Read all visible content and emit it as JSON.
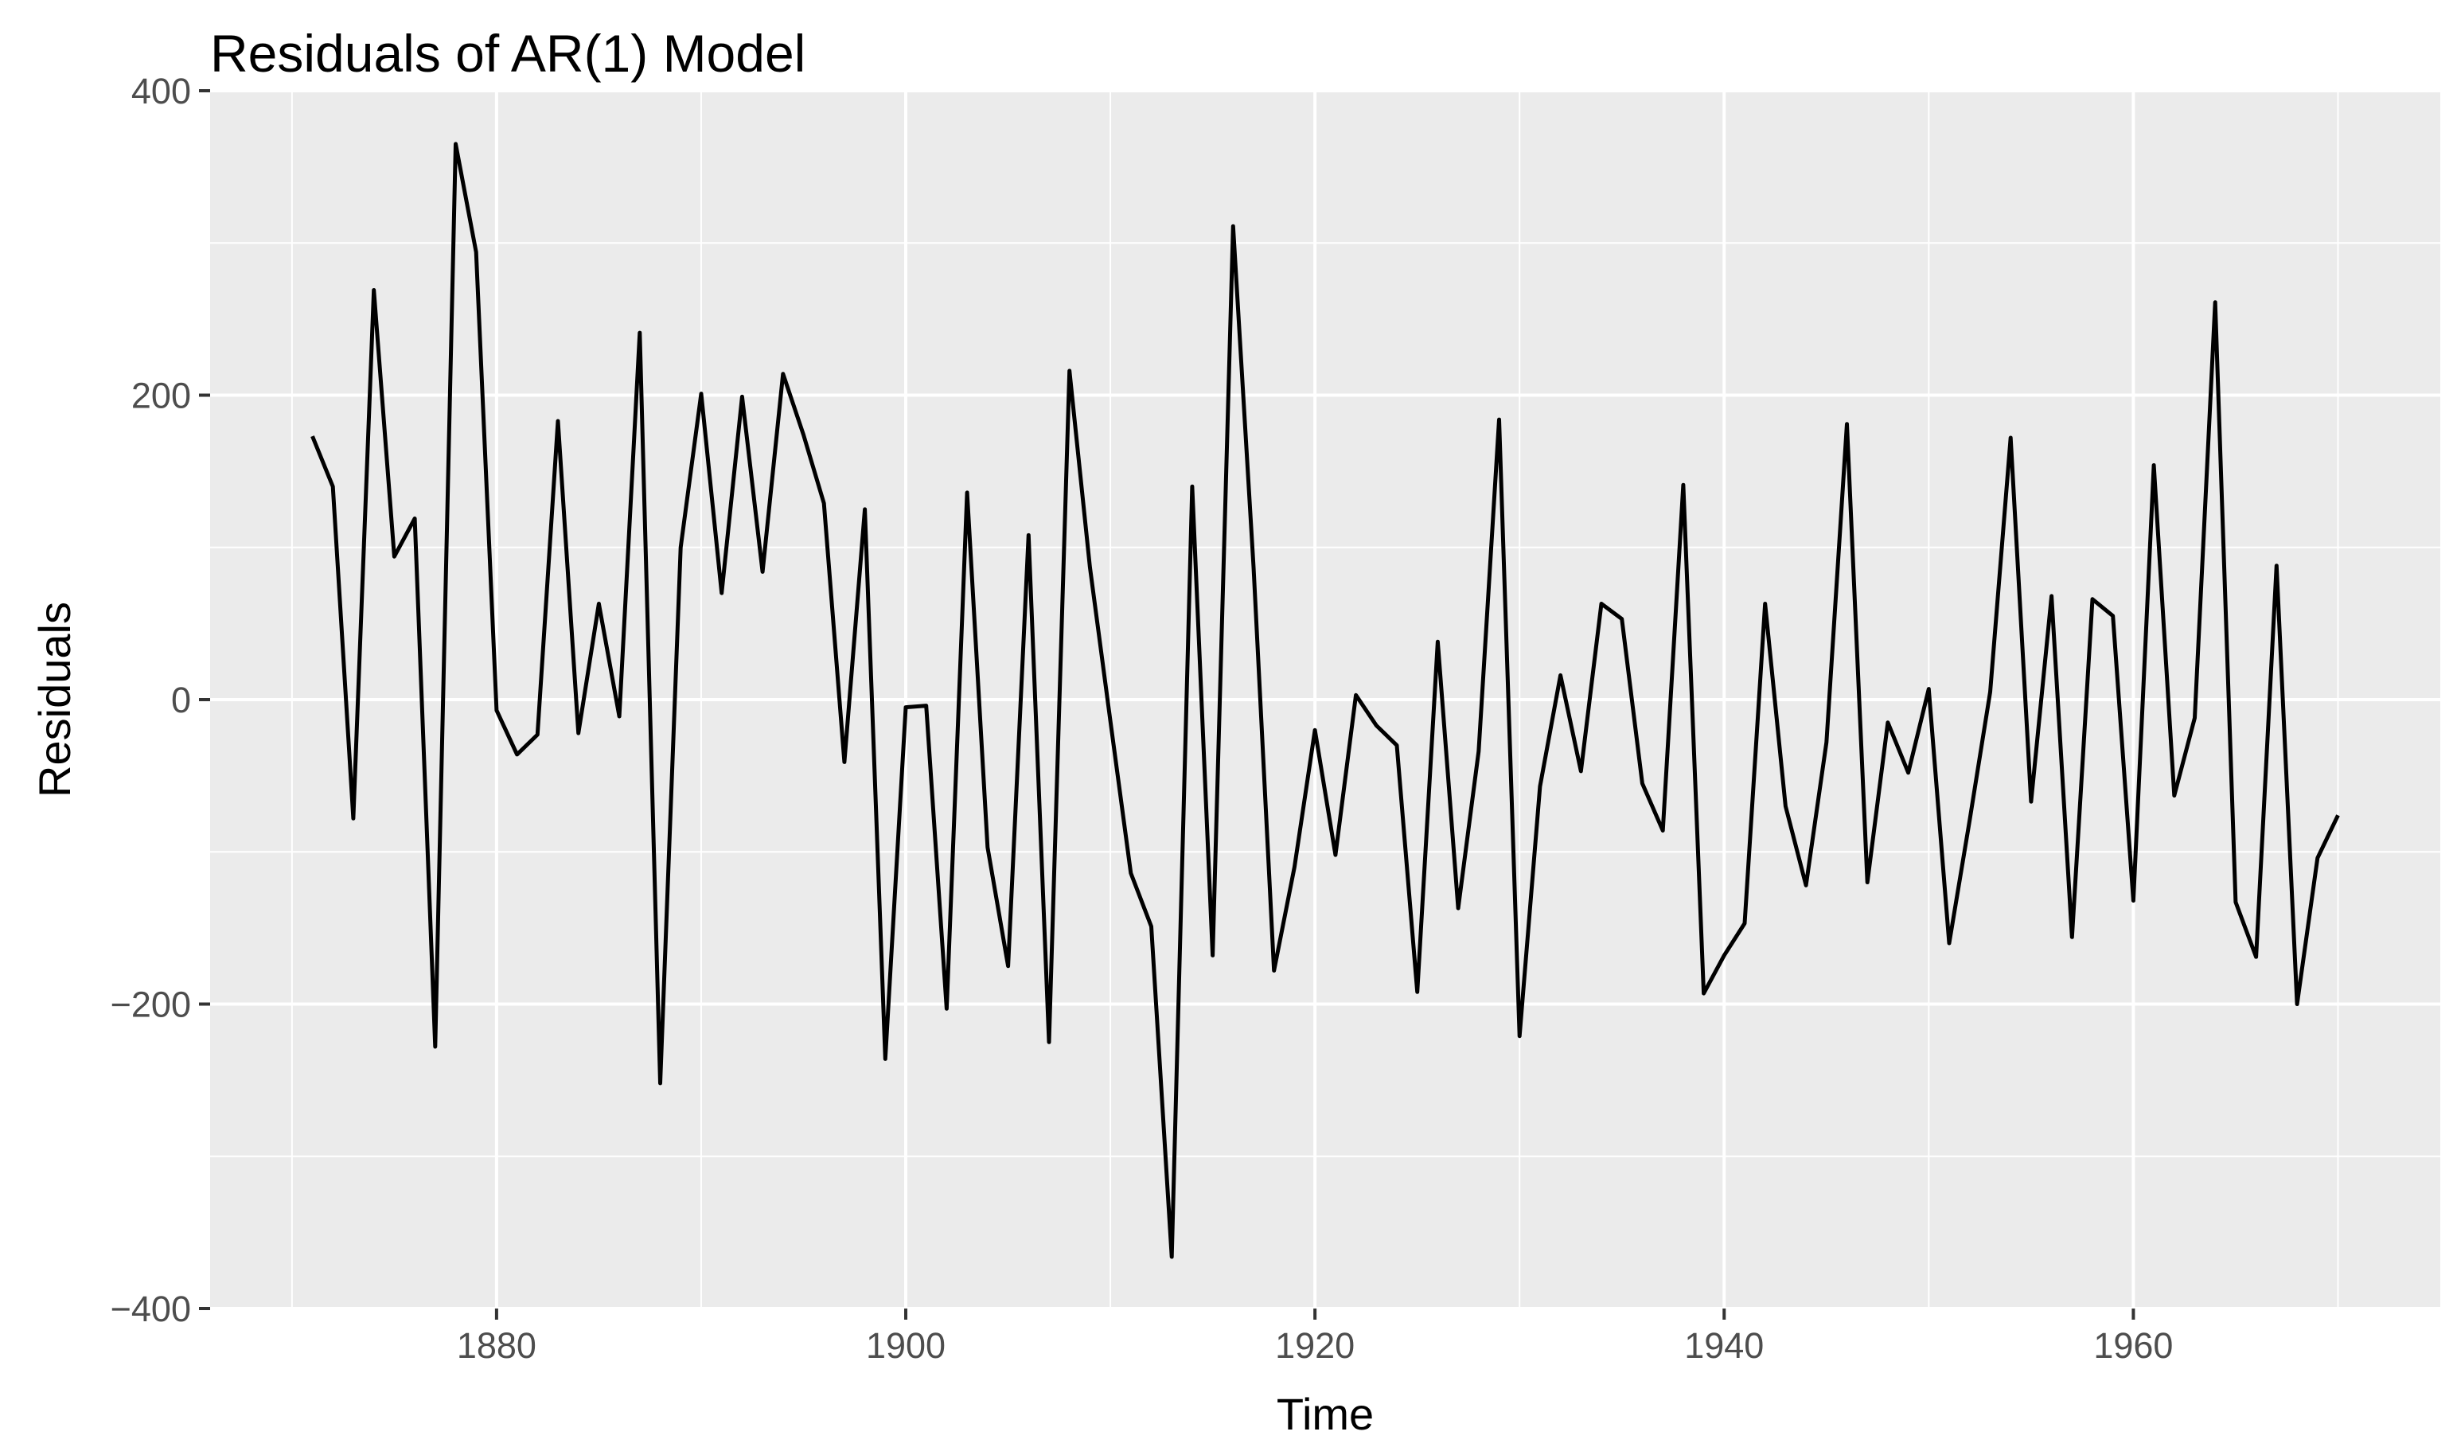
{
  "chart_data": {
    "type": "line",
    "title": "Residuals of AR(1) Model",
    "xlabel": "Time",
    "ylabel": "Residuals",
    "xlim": [
      1866,
      1975
    ],
    "ylim": [
      -400,
      400
    ],
    "x_ticks": [
      1880,
      1900,
      1920,
      1940,
      1960
    ],
    "x_tick_labels": [
      "1880",
      "1900",
      "1920",
      "1940",
      "1960"
    ],
    "y_ticks": [
      -400,
      -200,
      0,
      200,
      400
    ],
    "y_tick_labels": [
      "−400",
      "−200",
      "0",
      "200",
      "400"
    ],
    "grid": true,
    "legend": "none",
    "colors": {
      "panel": "#EBEBEB",
      "grid": "#FFFFFF",
      "line": "#000000",
      "tick": "#333333",
      "tick_label": "#4D4D4D"
    },
    "series": [
      {
        "x": [
          1871,
          1872,
          1873,
          1874,
          1875,
          1876,
          1877,
          1878,
          1879,
          1880,
          1881,
          1882,
          1883,
          1884,
          1885,
          1886,
          1887,
          1888,
          1889,
          1890,
          1891,
          1892,
          1893,
          1894,
          1895,
          1896,
          1897,
          1898,
          1899,
          1900,
          1901,
          1902,
          1903,
          1904,
          1905,
          1906,
          1907,
          1908,
          1909,
          1910,
          1911,
          1912,
          1913,
          1914,
          1915,
          1916,
          1917,
          1918,
          1919,
          1920,
          1921,
          1922,
          1923,
          1924,
          1925,
          1926,
          1927,
          1928,
          1929,
          1930,
          1931,
          1932,
          1933,
          1934,
          1935,
          1936,
          1937,
          1938,
          1939,
          1940,
          1941,
          1942,
          1943,
          1944,
          1945,
          1946,
          1947,
          1948,
          1949,
          1950,
          1951,
          1952,
          1953,
          1954,
          1955,
          1956,
          1957,
          1958,
          1959,
          1960,
          1961,
          1962,
          1963,
          1964,
          1965,
          1966,
          1967,
          1968,
          1969,
          1970
        ],
        "y": [
          173,
          140,
          -78,
          269,
          94,
          119,
          -228,
          365,
          294,
          -7,
          -36,
          -23,
          183,
          -22,
          63,
          -11,
          241,
          -252,
          100,
          201,
          70,
          199,
          84,
          214,
          174,
          129,
          -41,
          125,
          -236,
          -5,
          -4,
          -203,
          136,
          -97,
          -175,
          108,
          -225,
          216,
          87,
          -14,
          -114,
          -149,
          -366,
          140,
          -168,
          311,
          87,
          -178,
          -110,
          -20,
          -102,
          3,
          -17,
          -30,
          -192,
          38,
          -137,
          -34,
          184,
          -221,
          -57,
          16,
          -47,
          63,
          53,
          -55,
          -86,
          141,
          -193,
          -168,
          -147,
          63,
          -70,
          -122,
          -28,
          181,
          -120,
          -15,
          -48,
          7,
          -160,
          -79,
          5,
          172,
          -67,
          68,
          -156,
          66,
          55,
          -132,
          154,
          -63,
          -12,
          261,
          -133,
          -169,
          88,
          -200,
          -104,
          -76
        ]
      }
    ]
  }
}
